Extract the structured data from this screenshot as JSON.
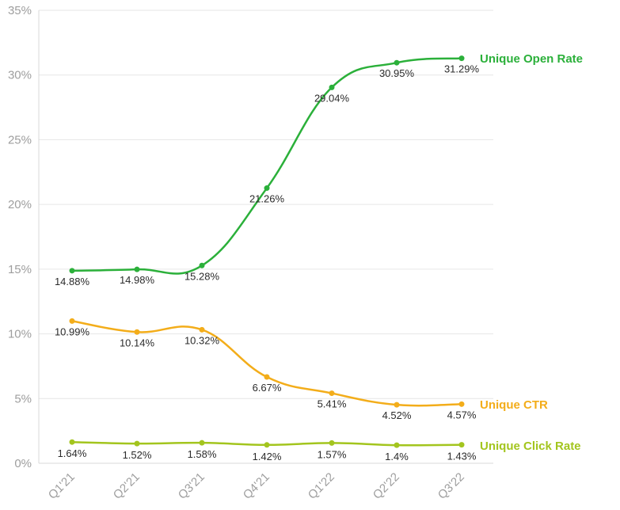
{
  "chart_data": {
    "type": "line",
    "categories": [
      "Q1'21",
      "Q2'21",
      "Q3'21",
      "Q4'21",
      "Q1'22",
      "Q2'22",
      "Q3'22"
    ],
    "series": [
      {
        "name": "Unique Open Rate",
        "color": "#2bb03a",
        "values": [
          14.88,
          14.98,
          15.28,
          21.26,
          29.04,
          30.95,
          31.29
        ],
        "labels": [
          "14.88%",
          "14.98%",
          "15.28%",
          "21.26%",
          "29.04%",
          "30.95%",
          "31.29%"
        ]
      },
      {
        "name": "Unique CTR",
        "color": "#f3ad1a",
        "values": [
          10.99,
          10.14,
          10.32,
          6.67,
          5.41,
          4.52,
          4.57
        ],
        "labels": [
          "10.99%",
          "10.14%",
          "10.32%",
          "6.67%",
          "5.41%",
          "4.52%",
          "4.57%"
        ]
      },
      {
        "name": "Unique Click Rate",
        "color": "#a3c51e",
        "values": [
          1.64,
          1.52,
          1.58,
          1.42,
          1.57,
          1.4,
          1.43
        ],
        "labels": [
          "1.64%",
          "1.52%",
          "1.58%",
          "1.42%",
          "1.57%",
          "1.4%",
          "1.43%"
        ]
      }
    ],
    "y_ticks": [
      "0%",
      "5%",
      "10%",
      "15%",
      "20%",
      "25%",
      "30%",
      "35%"
    ],
    "ylim": [
      0,
      35
    ],
    "grid": true,
    "legend": "inline-right"
  }
}
